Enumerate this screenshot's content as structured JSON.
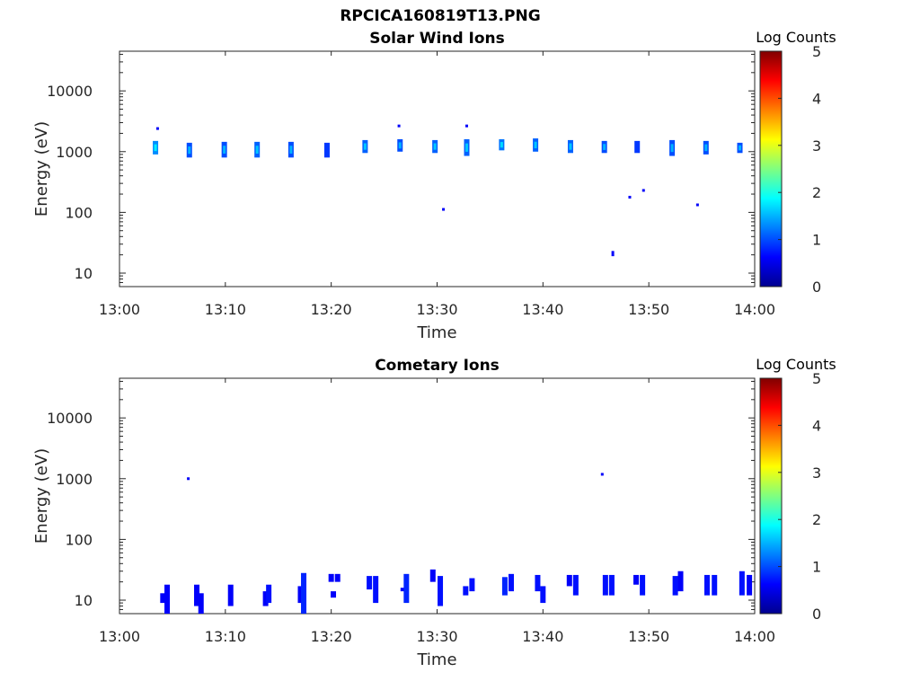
{
  "figure": {
    "title": "RPCICA160819T13.PNG"
  },
  "colorbar": {
    "label": "Log Counts",
    "range": [
      0,
      5
    ],
    "ticks": [
      "0",
      "1",
      "2",
      "3",
      "4",
      "5"
    ],
    "colormap": "jet"
  },
  "chart_data": [
    {
      "type": "heatmap",
      "title": "Solar Wind Ions",
      "xlabel": "Time",
      "ylabel": "Energy (eV)",
      "x_ticks": [
        "13:00",
        "13:10",
        "13:20",
        "13:30",
        "13:40",
        "13:50",
        "14:00"
      ],
      "xlim_minutes": [
        0,
        60
      ],
      "y_ticks": [
        "10",
        "100",
        "1000",
        "10000"
      ],
      "y_tick_values": [
        10,
        100,
        1000,
        10000
      ],
      "ylim": [
        6,
        45000
      ],
      "yscale": "log",
      "blobs": [
        {
          "t": 3.4,
          "e_min": 900,
          "e_max": 1500,
          "level": 1.3
        },
        {
          "t": 6.6,
          "e_min": 800,
          "e_max": 1400,
          "level": 1.0
        },
        {
          "t": 9.9,
          "e_min": 800,
          "e_max": 1450,
          "level": 1.0
        },
        {
          "t": 13.0,
          "e_min": 800,
          "e_max": 1450,
          "level": 1.1
        },
        {
          "t": 16.2,
          "e_min": 800,
          "e_max": 1450,
          "level": 1.0
        },
        {
          "t": 19.6,
          "e_min": 800,
          "e_max": 1400,
          "level": 0.9
        },
        {
          "t": 23.2,
          "e_min": 950,
          "e_max": 1550,
          "level": 1.1
        },
        {
          "t": 26.5,
          "e_min": 1000,
          "e_max": 1600,
          "level": 1.0
        },
        {
          "t": 29.8,
          "e_min": 950,
          "e_max": 1550,
          "level": 1.1
        },
        {
          "t": 32.8,
          "e_min": 850,
          "e_max": 1600,
          "level": 1.1
        },
        {
          "t": 36.1,
          "e_min": 1050,
          "e_max": 1600,
          "level": 1.2
        },
        {
          "t": 39.3,
          "e_min": 1000,
          "e_max": 1650,
          "level": 1.1
        },
        {
          "t": 42.6,
          "e_min": 950,
          "e_max": 1550,
          "level": 1.1
        },
        {
          "t": 45.8,
          "e_min": 950,
          "e_max": 1500,
          "level": 1.0
        },
        {
          "t": 48.9,
          "e_min": 950,
          "e_max": 1500,
          "level": 0.9
        },
        {
          "t": 52.2,
          "e_min": 850,
          "e_max": 1550,
          "level": 1.0
        },
        {
          "t": 55.4,
          "e_min": 900,
          "e_max": 1500,
          "level": 1.0
        },
        {
          "t": 58.6,
          "e_min": 950,
          "e_max": 1400,
          "level": 1.0
        }
      ],
      "dots": [
        {
          "t": 3.6,
          "e": 2400
        },
        {
          "t": 26.4,
          "e": 2650
        },
        {
          "t": 32.8,
          "e": 2650
        },
        {
          "t": 30.6,
          "e": 112
        },
        {
          "t": 48.2,
          "e": 178
        },
        {
          "t": 49.5,
          "e": 230
        },
        {
          "t": 54.6,
          "e": 133
        },
        {
          "t": 46.6,
          "e": 20
        },
        {
          "t": 46.6,
          "e": 22
        }
      ]
    },
    {
      "type": "heatmap",
      "title": "Cometary Ions",
      "xlabel": "Time",
      "ylabel": "Energy (eV)",
      "x_ticks": [
        "13:00",
        "13:10",
        "13:20",
        "13:30",
        "13:40",
        "13:50",
        "14:00"
      ],
      "xlim_minutes": [
        0,
        60
      ],
      "y_ticks": [
        "10",
        "100",
        "1000",
        "10000"
      ],
      "y_tick_values": [
        10,
        100,
        1000,
        10000
      ],
      "ylim": [
        6,
        45000
      ],
      "yscale": "log",
      "blobs": [
        {
          "t": 4.1,
          "e_min": 9,
          "e_max": 13,
          "level": 0.6
        },
        {
          "t": 4.5,
          "e_min": 6,
          "e_max": 18,
          "level": 0.6
        },
        {
          "t": 7.3,
          "e_min": 8,
          "e_max": 18,
          "level": 0.6
        },
        {
          "t": 7.7,
          "e_min": 6,
          "e_max": 13,
          "level": 0.6
        },
        {
          "t": 10.5,
          "e_min": 8,
          "e_max": 18,
          "level": 0.6
        },
        {
          "t": 13.8,
          "e_min": 8,
          "e_max": 14,
          "level": 0.6
        },
        {
          "t": 14.1,
          "e_min": 9,
          "e_max": 18,
          "level": 0.7
        },
        {
          "t": 17.1,
          "e_min": 9,
          "e_max": 17,
          "level": 0.6
        },
        {
          "t": 17.4,
          "e_min": 6,
          "e_max": 28,
          "level": 0.8
        },
        {
          "t": 20.0,
          "e_min": 20,
          "e_max": 27,
          "level": 0.6
        },
        {
          "t": 20.6,
          "e_min": 20,
          "e_max": 27,
          "level": 0.6
        },
        {
          "t": 20.2,
          "e_min": 11,
          "e_max": 14,
          "level": 0.6
        },
        {
          "t": 23.6,
          "e_min": 15,
          "e_max": 25,
          "level": 0.7
        },
        {
          "t": 24.2,
          "e_min": 9,
          "e_max": 25,
          "level": 0.7
        },
        {
          "t": 26.8,
          "e_min": 14,
          "e_max": 16,
          "level": 0.6
        },
        {
          "t": 27.1,
          "e_min": 9,
          "e_max": 27,
          "level": 0.8
        },
        {
          "t": 29.6,
          "e_min": 20,
          "e_max": 32,
          "level": 0.6
        },
        {
          "t": 30.3,
          "e_min": 8,
          "e_max": 25,
          "level": 0.7
        },
        {
          "t": 32.7,
          "e_min": 12,
          "e_max": 17,
          "level": 0.7
        },
        {
          "t": 33.3,
          "e_min": 14,
          "e_max": 23,
          "level": 0.7
        },
        {
          "t": 36.4,
          "e_min": 12,
          "e_max": 24,
          "level": 0.8
        },
        {
          "t": 37.0,
          "e_min": 14,
          "e_max": 27,
          "level": 0.7
        },
        {
          "t": 39.5,
          "e_min": 14,
          "e_max": 26,
          "level": 0.7
        },
        {
          "t": 40.0,
          "e_min": 9,
          "e_max": 17,
          "level": 0.7
        },
        {
          "t": 42.5,
          "e_min": 17,
          "e_max": 26,
          "level": 0.6
        },
        {
          "t": 43.1,
          "e_min": 12,
          "e_max": 26,
          "level": 0.7
        },
        {
          "t": 45.9,
          "e_min": 12,
          "e_max": 26,
          "level": 0.7
        },
        {
          "t": 46.5,
          "e_min": 12,
          "e_max": 26,
          "level": 0.7
        },
        {
          "t": 48.8,
          "e_min": 18,
          "e_max": 26,
          "level": 0.6
        },
        {
          "t": 49.4,
          "e_min": 12,
          "e_max": 26,
          "level": 0.7
        },
        {
          "t": 52.5,
          "e_min": 12,
          "e_max": 25,
          "level": 0.7
        },
        {
          "t": 53.0,
          "e_min": 14,
          "e_max": 30,
          "level": 0.6
        },
        {
          "t": 55.5,
          "e_min": 12,
          "e_max": 26,
          "level": 0.7
        },
        {
          "t": 56.2,
          "e_min": 12,
          "e_max": 26,
          "level": 0.7
        },
        {
          "t": 58.8,
          "e_min": 12,
          "e_max": 30,
          "level": 0.7
        },
        {
          "t": 59.5,
          "e_min": 12,
          "e_max": 26,
          "level": 0.6
        }
      ],
      "dots": [
        {
          "t": 6.5,
          "e": 1000
        },
        {
          "t": 45.6,
          "e": 1180
        }
      ]
    }
  ]
}
